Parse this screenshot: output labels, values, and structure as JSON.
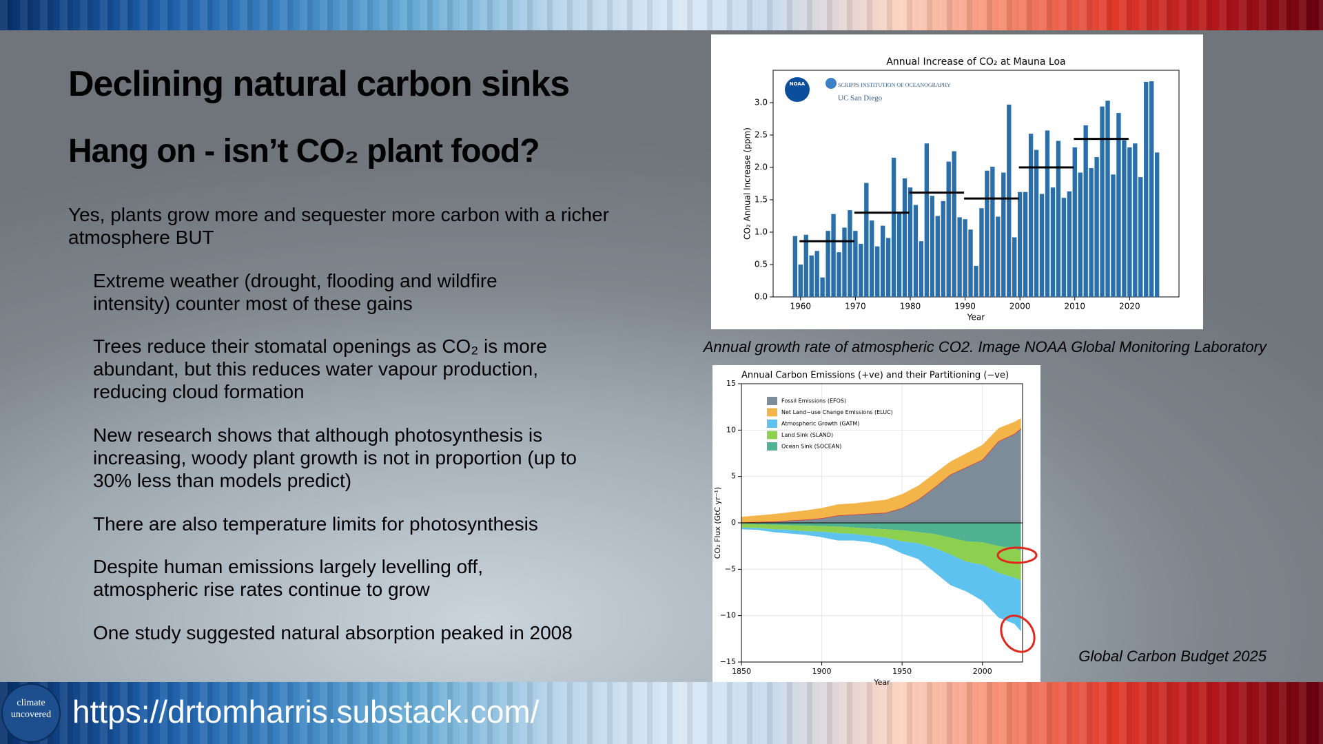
{
  "slide": {
    "title": "Declining natural carbon sinks",
    "subtitle": "Hang on - isn’t CO₂ plant food?",
    "intro": "Yes, plants grow more and sequester more carbon with a richer atmosphere BUT",
    "bullets": [
      "Extreme weather (drought, flooding and wildfire intensity) counter most of these gains",
      "Trees reduce their stomatal openings as CO₂ is more abundant, but this reduces water vapour production, reducing cloud formation",
      "New research shows that although photosynthesis is increasing, woody plant growth is not in proportion (up to 30% less than models predict)",
      "There are also temperature limits for photosynthesis",
      "Despite human emissions largely levelling off, atmospheric rise rates continue to grow",
      "One study suggested natural absorption peaked in 2008"
    ],
    "caption_1": "Annual growth rate of atmospheric CO2. Image NOAA Global Monitoring Laboratory",
    "caption_2": "Global Carbon Budget 2025",
    "logo": "climate uncovered",
    "url": "https://drtomharris.substack.com/"
  },
  "chart_data": [
    {
      "type": "bar",
      "title": "Annual Increase of CO₂ at Mauna Loa",
      "x_label": "Year",
      "y_label": "CO₂ Annual Increase (ppm)",
      "logos": [
        "NOAA",
        "SCRIPPS INSTITUTION OF OCEANOGRAPHY",
        "UC San Diego"
      ],
      "color": "#2a6faa",
      "x": [
        1959,
        1960,
        1961,
        1962,
        1963,
        1964,
        1965,
        1966,
        1967,
        1968,
        1969,
        1970,
        1971,
        1972,
        1973,
        1974,
        1975,
        1976,
        1977,
        1978,
        1979,
        1980,
        1981,
        1982,
        1983,
        1984,
        1985,
        1986,
        1987,
        1988,
        1989,
        1990,
        1991,
        1992,
        1993,
        1994,
        1995,
        1996,
        1997,
        1998,
        1999,
        2000,
        2001,
        2002,
        2003,
        2004,
        2005,
        2006,
        2007,
        2008,
        2009,
        2010,
        2011,
        2012,
        2013,
        2014,
        2015,
        2016,
        2017,
        2018,
        2019,
        2020,
        2021,
        2022,
        2023,
        2024,
        2025
      ],
      "values": [
        0.94,
        0.5,
        0.96,
        0.64,
        0.71,
        0.3,
        1.02,
        1.28,
        0.69,
        1.07,
        1.34,
        1.02,
        0.82,
        1.76,
        1.18,
        0.78,
        1.1,
        0.91,
        2.15,
        1.3,
        1.83,
        1.69,
        1.42,
        0.86,
        2.37,
        1.56,
        1.25,
        1.48,
        2.09,
        2.25,
        1.23,
        1.2,
        1.04,
        0.48,
        1.37,
        1.95,
        2.01,
        1.24,
        1.92,
        2.97,
        0.92,
        1.62,
        1.62,
        2.52,
        2.27,
        1.59,
        2.57,
        1.69,
        2.41,
        1.53,
        1.63,
        2.31,
        1.92,
        2.65,
        1.99,
        2.16,
        2.94,
        3.03,
        1.89,
        2.84,
        2.42,
        2.31,
        2.37,
        1.85,
        3.32,
        3.33,
        2.23
      ],
      "decadal_averages": {
        "decades": [
          1960,
          1970,
          1980,
          1990,
          2000,
          2010
        ],
        "values": [
          0.86,
          1.3,
          1.61,
          1.52,
          2.0,
          2.44
        ]
      },
      "xlim": [
        1955,
        2029
      ],
      "xticks": [
        1960,
        1970,
        1980,
        1990,
        2000,
        2010,
        2020
      ],
      "ylim": [
        0,
        3.5
      ],
      "yticks": [
        {
          "value": 0,
          "label": "0.0"
        },
        0.5,
        {
          "value": 1,
          "label": "1.0"
        },
        1.5,
        {
          "value": 2,
          "label": "2.0"
        },
        2.5,
        {
          "value": 3,
          "label": "3.0"
        }
      ]
    },
    {
      "type": "stacked_area",
      "title": "Annual Carbon Emissions (+ve) and their Partitioning (−ve)",
      "x_label": "Year",
      "y_label": "CO₂ Flux (GtC yr⁻¹)",
      "x": [
        1850,
        1860,
        1870,
        1880,
        1890,
        1900,
        1910,
        1920,
        1930,
        1940,
        1950,
        1960,
        1970,
        1980,
        1990,
        2000,
        2010,
        2020,
        2024
      ],
      "series": [
        {
          "name": "Fossil Emissions (EFOS)",
          "color": "#7c8d99",
          "values": [
            0.05,
            0.1,
            0.15,
            0.25,
            0.35,
            0.5,
            0.8,
            0.9,
            1.0,
            1.1,
            1.6,
            2.5,
            3.8,
            5.2,
            6.0,
            6.8,
            8.8,
            9.6,
            10.2
          ]
        },
        {
          "name": "Net Land−use Change Emissions (ELUC)",
          "color": "#f3b54a",
          "values": [
            0.6,
            0.7,
            0.8,
            0.9,
            1.0,
            1.1,
            1.2,
            1.2,
            1.3,
            1.4,
            1.5,
            1.5,
            1.5,
            1.4,
            1.5,
            1.6,
            1.4,
            1.3,
            1.1
          ]
        },
        {
          "name": "Atmospheric Growth (GATM)",
          "color": "#5ec2ef",
          "values": [
            -0.2,
            -0.2,
            -0.3,
            -0.4,
            -0.4,
            -0.6,
            -0.8,
            -0.7,
            -0.7,
            -0.9,
            -1.3,
            -1.7,
            -2.6,
            -3.3,
            -3.2,
            -3.9,
            -4.8,
            -5.0,
            -5.5
          ]
        },
        {
          "name": "Land Sink (SLAND)",
          "color": "#8dcf4f",
          "values": [
            -0.4,
            -0.4,
            -0.5,
            -0.5,
            -0.6,
            -0.6,
            -0.7,
            -0.7,
            -0.8,
            -0.9,
            -1.2,
            -1.2,
            -1.5,
            -1.8,
            -2.2,
            -2.4,
            -2.9,
            -3.1,
            -3.2
          ]
        },
        {
          "name": "Ocean Sink (SOCEAN)",
          "color": "#4fb291",
          "values": [
            -0.1,
            -0.15,
            -0.2,
            -0.25,
            -0.3,
            -0.35,
            -0.4,
            -0.5,
            -0.6,
            -0.7,
            -0.8,
            -1.0,
            -1.2,
            -1.6,
            -2.0,
            -2.1,
            -2.5,
            -2.8,
            -3.0
          ]
        }
      ],
      "xlim": [
        1850,
        2025
      ],
      "xticks": [
        1850,
        1900,
        1950,
        2000
      ],
      "ylim": [
        -15,
        15
      ],
      "yticks": [
        {
          "value": -15,
          "label": "−15"
        },
        {
          "value": -10,
          "label": "−10"
        },
        {
          "value": -5,
          "label": "−5"
        },
        0,
        5,
        10,
        15
      ]
    }
  ]
}
